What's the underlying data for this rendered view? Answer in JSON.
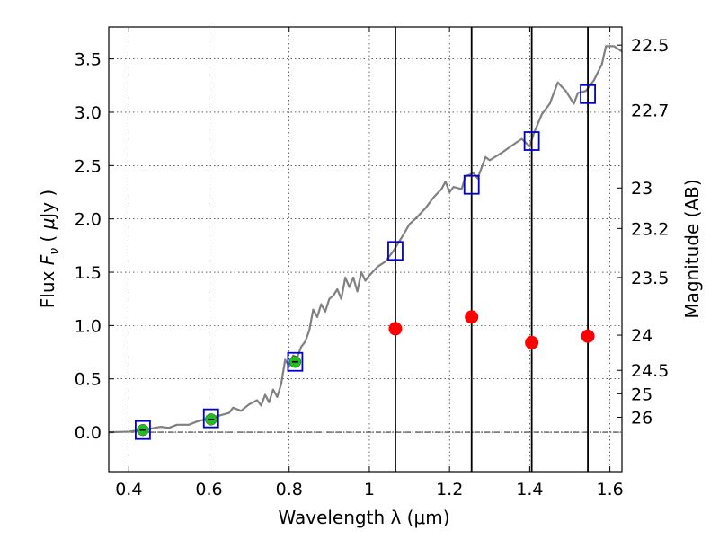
{
  "chart_data": {
    "type": "scatter",
    "xlabel": "Wavelength  λ (μm)",
    "ylabel": "Flux  F_ν  ( μJy )",
    "ylabel_right": "Magnitude (AB)",
    "xlim": [
      0.35,
      1.63
    ],
    "ylim": [
      -0.37,
      3.8
    ],
    "x_ticks": [
      0.4,
      0.6,
      0.8,
      1.0,
      1.2,
      1.4,
      1.6
    ],
    "x_tick_labels": [
      "0.4",
      "0.6",
      "0.8",
      "1",
      "1.2",
      "1.4",
      "1.6"
    ],
    "y_ticks": [
      0.0,
      0.5,
      1.0,
      1.5,
      2.0,
      2.5,
      3.0,
      3.5
    ],
    "y_tick_labels": [
      "0.0",
      "0.5",
      "1.0",
      "1.5",
      "2.0",
      "2.5",
      "3.0",
      "3.5"
    ],
    "right_ticks": [
      {
        "label": "22.5",
        "flux": 3.63
      },
      {
        "label": "22.7",
        "flux": 3.02
      },
      {
        "label": "23",
        "flux": 2.29
      },
      {
        "label": "23.2",
        "flux": 1.91
      },
      {
        "label": "23.5",
        "flux": 1.45
      },
      {
        "label": "24",
        "flux": 0.91
      },
      {
        "label": "24.5",
        "flux": 0.58
      },
      {
        "label": "25",
        "flux": 0.36
      },
      {
        "label": "26",
        "flux": 0.14
      }
    ],
    "grid": true,
    "zero_line": true,
    "vertical_lines": [
      1.065,
      1.255,
      1.405,
      1.545
    ],
    "series": [
      {
        "kind": "line",
        "color": "#808080",
        "points": [
          [
            0.35,
            0.0
          ],
          [
            0.4,
            0.005
          ],
          [
            0.45,
            0.03
          ],
          [
            0.48,
            0.05
          ],
          [
            0.5,
            0.04
          ],
          [
            0.52,
            0.07
          ],
          [
            0.55,
            0.07
          ],
          [
            0.57,
            0.1
          ],
          [
            0.59,
            0.12
          ],
          [
            0.61,
            0.14
          ],
          [
            0.63,
            0.16
          ],
          [
            0.65,
            0.18
          ],
          [
            0.66,
            0.23
          ],
          [
            0.68,
            0.2
          ],
          [
            0.7,
            0.26
          ],
          [
            0.72,
            0.3
          ],
          [
            0.73,
            0.25
          ],
          [
            0.74,
            0.35
          ],
          [
            0.75,
            0.28
          ],
          [
            0.76,
            0.4
          ],
          [
            0.77,
            0.33
          ],
          [
            0.78,
            0.45
          ],
          [
            0.79,
            0.68
          ],
          [
            0.8,
            0.62
          ],
          [
            0.81,
            0.72
          ],
          [
            0.82,
            0.7
          ],
          [
            0.83,
            0.8
          ],
          [
            0.84,
            0.85
          ],
          [
            0.85,
            0.95
          ],
          [
            0.86,
            1.15
          ],
          [
            0.87,
            1.08
          ],
          [
            0.88,
            1.2
          ],
          [
            0.89,
            1.13
          ],
          [
            0.9,
            1.25
          ],
          [
            0.91,
            1.28
          ],
          [
            0.92,
            1.34
          ],
          [
            0.93,
            1.25
          ],
          [
            0.94,
            1.45
          ],
          [
            0.95,
            1.36
          ],
          [
            0.96,
            1.45
          ],
          [
            0.97,
            1.32
          ],
          [
            0.98,
            1.5
          ],
          [
            0.99,
            1.42
          ],
          [
            1.0,
            1.47
          ],
          [
            1.02,
            1.55
          ],
          [
            1.04,
            1.6
          ],
          [
            1.06,
            1.7
          ],
          [
            1.08,
            1.82
          ],
          [
            1.1,
            1.95
          ],
          [
            1.12,
            2.02
          ],
          [
            1.14,
            2.1
          ],
          [
            1.16,
            2.2
          ],
          [
            1.18,
            2.28
          ],
          [
            1.19,
            2.35
          ],
          [
            1.2,
            2.25
          ],
          [
            1.21,
            2.3
          ],
          [
            1.23,
            2.28
          ],
          [
            1.24,
            2.4
          ],
          [
            1.26,
            2.43
          ],
          [
            1.27,
            2.38
          ],
          [
            1.29,
            2.58
          ],
          [
            1.3,
            2.55
          ],
          [
            1.33,
            2.62
          ],
          [
            1.36,
            2.7
          ],
          [
            1.38,
            2.75
          ],
          [
            1.4,
            2.68
          ],
          [
            1.41,
            2.8
          ],
          [
            1.43,
            2.98
          ],
          [
            1.45,
            3.08
          ],
          [
            1.47,
            3.28
          ],
          [
            1.49,
            3.2
          ],
          [
            1.51,
            3.08
          ],
          [
            1.52,
            3.18
          ],
          [
            1.54,
            3.2
          ],
          [
            1.56,
            3.3
          ],
          [
            1.58,
            3.45
          ],
          [
            1.59,
            3.62
          ],
          [
            1.61,
            3.62
          ],
          [
            1.63,
            3.57
          ]
        ]
      },
      {
        "kind": "squares",
        "color": "#0000cc",
        "points": [
          [
            0.435,
            0.02
          ],
          [
            0.605,
            0.13
          ],
          [
            0.815,
            0.66
          ],
          [
            1.065,
            1.7
          ],
          [
            1.255,
            2.32
          ],
          [
            1.405,
            2.73
          ],
          [
            1.545,
            3.17
          ]
        ]
      },
      {
        "kind": "green-points",
        "color": "#22bb22",
        "points": [
          [
            0.435,
            0.02
          ],
          [
            0.605,
            0.12
          ],
          [
            0.815,
            0.66
          ]
        ]
      },
      {
        "kind": "red-points",
        "color": "#ff0000",
        "points": [
          [
            1.065,
            0.97
          ],
          [
            1.255,
            1.08
          ],
          [
            1.405,
            0.84
          ],
          [
            1.545,
            0.9
          ]
        ]
      }
    ]
  }
}
